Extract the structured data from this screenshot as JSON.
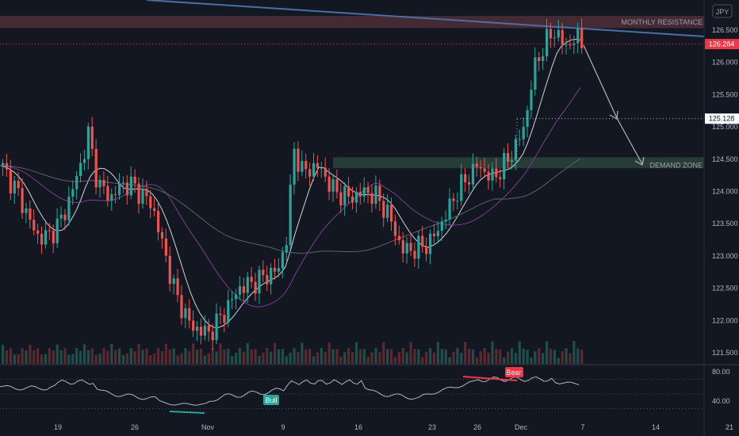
{
  "currency": "JPY",
  "price_axis": {
    "ticks": [
      "126.500",
      "126.000",
      "125.500",
      "125.000",
      "124.500",
      "124.000",
      "123.500",
      "123.000",
      "122.500",
      "122.000",
      "121.500"
    ],
    "ylim": [
      121.3,
      126.85
    ]
  },
  "time_axis": {
    "ticks": [
      "19",
      "26",
      "Nov",
      "9",
      "16",
      "23",
      "26",
      "Dec",
      "7",
      "14",
      "21"
    ]
  },
  "last_price": {
    "label": "126.284",
    "value": 126.284,
    "color": "#f23645"
  },
  "target_price": {
    "label": "125.128",
    "value": 125.128,
    "color": "#ffffff"
  },
  "zones": {
    "monthly_resistance": {
      "label": "MONTHLY RESISTANCE",
      "low": 126.53,
      "high": 126.72,
      "color": "#6b3b44"
    },
    "demand_zone": {
      "label": "DEMAND ZONE",
      "low": 124.36,
      "high": 124.53,
      "color": "#2f4a3e"
    }
  },
  "rsi": {
    "ticks": [
      "80.00",
      "40.00"
    ],
    "ylim": [
      30,
      86
    ],
    "upper_level": 70,
    "lower_level": 30,
    "mid_level": 50,
    "signals": [
      {
        "label": "Bull",
        "color": "#26a69a"
      },
      {
        "label": "Bear",
        "color": "#f23645"
      }
    ]
  },
  "colors": {
    "up": "#26a69a",
    "down": "#ef5350",
    "background": "#131722",
    "trendline": "#4a6fa5"
  },
  "chart_data": {
    "type": "candlestick",
    "ohlc": [],
    "volume": []
  }
}
